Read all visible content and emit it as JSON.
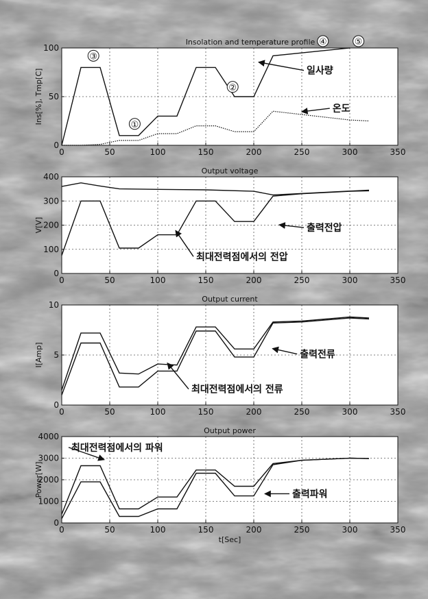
{
  "colors": {
    "background": "#8f8f8f",
    "plot_bg": "#ffffff",
    "ink": "#111111",
    "grid": "#555555"
  },
  "chart_data": [
    {
      "type": "line",
      "title": "Insolation and temperature profile",
      "xlabel": "",
      "ylabel": "Ins[%], Tmp[C]",
      "xlim": [
        0,
        350
      ],
      "ylim": [
        0,
        100
      ],
      "xticks": [
        0,
        50,
        100,
        150,
        200,
        250,
        300,
        350
      ],
      "yticks": [
        0,
        50,
        100
      ],
      "grid": true,
      "series": [
        {
          "style": "solid",
          "x": [
            0,
            20,
            40,
            60,
            80,
            100,
            120,
            140,
            160,
            180,
            200,
            220,
            300
          ],
          "y": [
            0,
            80,
            80,
            10,
            10,
            30,
            30,
            80,
            80,
            50,
            50,
            92,
            100
          ]
        },
        {
          "style": "dotted",
          "x": [
            0,
            20,
            40,
            60,
            80,
            100,
            120,
            140,
            160,
            180,
            200,
            220,
            300,
            320
          ],
          "y": [
            0,
            0,
            1,
            5,
            5,
            12,
            12,
            20,
            20,
            14,
            14,
            35,
            26,
            25
          ]
        }
      ],
      "annotations": [
        {
          "text": "일사량",
          "x": 255,
          "y": 77
        },
        {
          "text": "온도",
          "x": 282,
          "y": 38
        }
      ],
      "markers": [
        {
          "text": "③",
          "x": 33,
          "y": 92
        },
        {
          "text": "①",
          "x": 76,
          "y": 22
        },
        {
          "text": "②",
          "x": 178,
          "y": 60
        },
        {
          "text": "④",
          "x": 272,
          "y": 107
        },
        {
          "text": "⑤",
          "x": 309,
          "y": 107
        }
      ]
    },
    {
      "type": "line",
      "title": "Output voltage",
      "xlabel": "",
      "ylabel": "V[V]",
      "xlim": [
        0,
        350
      ],
      "ylim": [
        0,
        400
      ],
      "xticks": [
        0,
        50,
        100,
        150,
        200,
        250,
        300,
        350
      ],
      "yticks": [
        0,
        100,
        200,
        300,
        400
      ],
      "grid": true,
      "series": [
        {
          "style": "solid",
          "x": [
            0,
            20,
            40,
            60,
            80,
            100,
            120,
            140,
            160,
            180,
            200,
            220,
            250,
            300,
            320
          ],
          "y": [
            75,
            300,
            300,
            105,
            105,
            160,
            160,
            300,
            300,
            215,
            215,
            320,
            330,
            340,
            342
          ]
        },
        {
          "style": "solid",
          "x": [
            0,
            20,
            40,
            60,
            100,
            150,
            200,
            220,
            320
          ],
          "y": [
            360,
            375,
            362,
            350,
            348,
            346,
            340,
            325,
            345
          ]
        }
      ],
      "annotations": [
        {
          "text": "출력전압",
          "x": 255,
          "y": 190
        },
        {
          "text": "최대전력점에서의 전압",
          "x": 140,
          "y": 70
        }
      ]
    },
    {
      "type": "line",
      "title": "Output current",
      "xlabel": "",
      "ylabel": "I[Amp]",
      "xlim": [
        0,
        350
      ],
      "ylim": [
        0,
        10
      ],
      "xticks": [
        0,
        50,
        100,
        150,
        200,
        250,
        300,
        350
      ],
      "yticks": [
        0,
        5,
        10
      ],
      "grid": true,
      "series": [
        {
          "style": "solid",
          "x": [
            0,
            20,
            40,
            60,
            80,
            100,
            120,
            140,
            160,
            180,
            200,
            220,
            250,
            300,
            320
          ],
          "y": [
            1,
            6.2,
            6.2,
            1.8,
            1.8,
            3.4,
            3.4,
            7.4,
            7.4,
            4.8,
            4.8,
            8.2,
            8.3,
            8.7,
            8.6
          ]
        },
        {
          "style": "solid",
          "x": [
            0,
            20,
            40,
            60,
            80,
            100,
            120,
            140,
            160,
            180,
            200,
            220,
            250,
            300,
            320
          ],
          "y": [
            1.5,
            7.2,
            7.2,
            3.2,
            3.1,
            4.1,
            4.0,
            7.8,
            7.8,
            5.6,
            5.6,
            8.3,
            8.4,
            8.8,
            8.7
          ]
        }
      ],
      "annotations": [
        {
          "text": "출력전류",
          "x": 248,
          "y": 5.1
        },
        {
          "text": "최대전력점에서의 전류",
          "x": 135,
          "y": 1.6
        }
      ]
    },
    {
      "type": "line",
      "title": "Output power",
      "xlabel": "t[Sec]",
      "ylabel": "Power[W]",
      "xlim": [
        0,
        350
      ],
      "ylim": [
        0,
        4000
      ],
      "xticks": [
        0,
        50,
        100,
        150,
        200,
        250,
        300,
        350
      ],
      "yticks": [
        0,
        1000,
        2000,
        3000,
        4000
      ],
      "grid": true,
      "series": [
        {
          "style": "solid",
          "x": [
            0,
            20,
            40,
            60,
            80,
            100,
            120,
            140,
            160,
            180,
            200,
            220,
            250,
            300,
            320
          ],
          "y": [
            200,
            1900,
            1900,
            300,
            300,
            650,
            650,
            2300,
            2300,
            1250,
            1250,
            2700,
            2900,
            3000,
            2980
          ]
        },
        {
          "style": "solid",
          "x": [
            0,
            20,
            40,
            60,
            80,
            100,
            120,
            140,
            160,
            180,
            200,
            220,
            250,
            300,
            320
          ],
          "y": [
            400,
            2650,
            2650,
            650,
            650,
            1200,
            1200,
            2450,
            2450,
            1700,
            1700,
            2750,
            2900,
            3000,
            2980
          ]
        }
      ],
      "annotations": [
        {
          "text": "최대전력점에서의 파워",
          "x": 10,
          "y": 3500
        },
        {
          "text": "출력파워",
          "x": 240,
          "y": 1350
        }
      ]
    }
  ]
}
